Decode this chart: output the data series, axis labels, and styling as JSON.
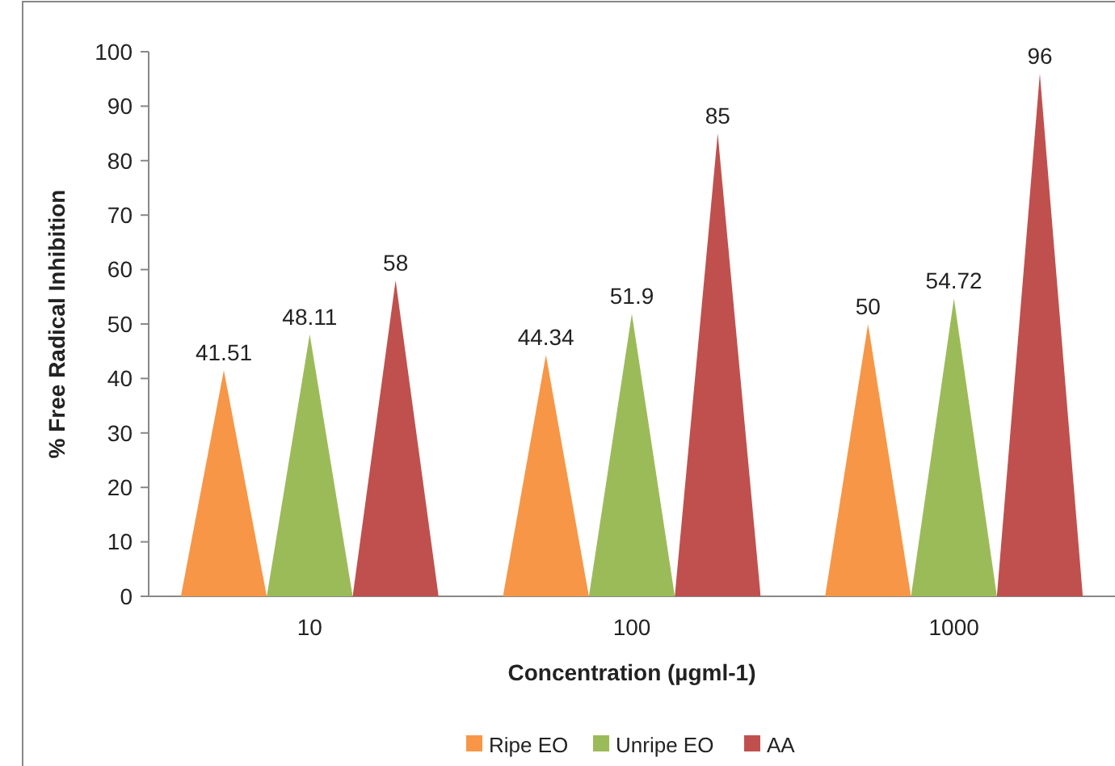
{
  "chart_data": {
    "type": "bar",
    "xlabel": "Concentration (µgml-1)",
    "ylabel": "% Free Radical Inhibition",
    "categories": [
      "10",
      "100",
      "1000"
    ],
    "series": [
      {
        "name": "Ripe EO",
        "color": "#f79646",
        "values": [
          41.51,
          44.34,
          50
        ]
      },
      {
        "name": "Unripe EO",
        "color": "#9bbb59",
        "values": [
          48.11,
          51.9,
          54.72
        ]
      },
      {
        "name": "AA",
        "color": "#c0504d",
        "values": [
          58,
          85,
          96
        ]
      }
    ],
    "ylim": [
      0,
      100
    ],
    "yticks": [
      0,
      10,
      20,
      30,
      40,
      50,
      60,
      70,
      80,
      90,
      100
    ],
    "data_labels": true,
    "legend": "bottom",
    "grid": false
  }
}
